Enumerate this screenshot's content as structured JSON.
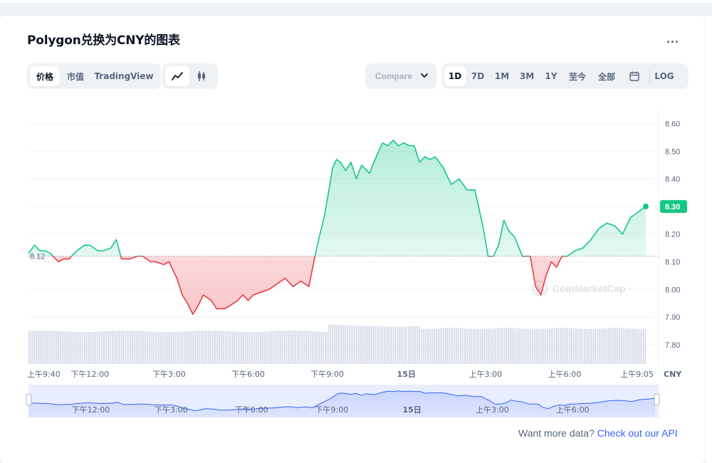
{
  "page": {
    "title": "Polygon兑换为CNY的图表",
    "more_label": "...",
    "attribution": {
      "text": "Want more data?",
      "link": "Check out our API"
    }
  },
  "toolbar": {
    "tabs": [
      "价格",
      "市值",
      "TradingView"
    ],
    "active_tab": "价格",
    "chart_styles": [
      {
        "icon": "line-chart-icon",
        "active": true
      },
      {
        "icon": "candlestick-icon",
        "active": false
      }
    ],
    "compare_label": "Compare",
    "ranges": [
      "1D",
      "7D",
      "1M",
      "3M",
      "1Y",
      "至今",
      "全部"
    ],
    "active_range": "1D",
    "calendar_icon": "calendar-icon",
    "log_label": "LOG"
  },
  "chart_data": {
    "type": "line",
    "currency": "CNY",
    "ylim": [
      7.73,
      8.64
    ],
    "yticks": [
      7.8,
      7.9,
      8.0,
      8.1,
      8.2,
      8.3,
      8.4,
      8.5,
      8.6
    ],
    "ytick_labels": [
      "7.80",
      "7.90",
      "8.00",
      "8.10",
      "8.20",
      "8.30",
      "8.40",
      "8.50",
      "8.60"
    ],
    "baseline": 8.12,
    "baseline_label": "8.12",
    "current_value": 8.3,
    "current_label": "8.30",
    "xlim": [
      9.67,
      33.08
    ],
    "xticks": [
      {
        "t": 9.67,
        "label": "上午9:40"
      },
      {
        "t": 12,
        "label": "下午12:00"
      },
      {
        "t": 15,
        "label": "下午3:00"
      },
      {
        "t": 18,
        "label": "下午6:00"
      },
      {
        "t": 21,
        "label": "下午9:00"
      },
      {
        "t": 24,
        "label": "15日"
      },
      {
        "t": 27,
        "label": "上午3:00"
      },
      {
        "t": 30,
        "label": "上午6:00"
      },
      {
        "t": 33.08,
        "label": "上午9:05"
      }
    ],
    "navigator_ticks": [
      {
        "t": 12,
        "label": "下午12:00"
      },
      {
        "t": 15,
        "label": "下午3:00"
      },
      {
        "t": 18,
        "label": "下午6:00"
      },
      {
        "t": 21,
        "label": "下午9:00"
      },
      {
        "t": 24,
        "label": "15日"
      },
      {
        "t": 27,
        "label": "上午3:00"
      },
      {
        "t": 30,
        "label": "上午6:00"
      }
    ],
    "watermark": "CoinMarketCap",
    "colors": {
      "up": "#16c784",
      "down": "#ea3943",
      "volume": "#cfd6e4",
      "navigator": "#3861fb"
    },
    "series": [
      {
        "x": [
          9.67,
          9.9,
          10.1,
          10.3,
          10.5,
          10.8,
          11.0,
          11.2,
          11.5,
          11.8,
          12.0,
          12.3,
          12.5,
          12.8,
          13.0,
          13.2,
          13.5,
          13.8,
          14.0,
          14.3,
          14.5,
          14.8,
          15.0,
          15.3,
          15.5,
          15.7,
          15.9,
          16.1,
          16.3,
          16.6,
          16.8,
          17.1,
          17.3,
          17.6,
          17.8,
          18.0,
          18.2,
          18.5,
          18.8,
          19.1,
          19.4,
          19.7,
          20.0,
          20.3,
          20.6,
          20.9,
          21.1,
          21.2,
          21.35,
          21.5,
          21.7,
          21.9,
          22.1,
          22.3,
          22.6,
          22.9,
          23.1,
          23.3,
          23.5,
          23.7,
          23.9,
          24.1,
          24.3,
          24.5,
          24.7,
          24.9,
          25.1,
          25.4,
          25.7,
          26.0,
          26.3,
          26.6,
          26.9,
          27.1,
          27.3,
          27.5,
          27.7,
          27.9,
          28.1,
          28.4,
          28.7,
          28.9,
          29.1,
          29.3,
          29.5,
          29.7,
          29.9,
          30.1,
          30.4,
          30.7,
          31.0,
          31.3,
          31.6,
          31.9,
          32.2,
          32.5,
          32.8,
          33.08
        ],
        "values": [
          8.13,
          8.16,
          8.14,
          8.14,
          8.13,
          8.1,
          8.11,
          8.11,
          8.14,
          8.16,
          8.16,
          8.14,
          8.14,
          8.15,
          8.18,
          8.11,
          8.11,
          8.12,
          8.12,
          8.1,
          8.1,
          8.09,
          8.1,
          8.04,
          7.98,
          7.95,
          7.91,
          7.94,
          7.98,
          7.96,
          7.93,
          7.93,
          7.94,
          7.96,
          7.98,
          7.96,
          7.98,
          7.99,
          8.0,
          8.02,
          8.04,
          8.01,
          8.03,
          8.01,
          8.15,
          8.27,
          8.38,
          8.44,
          8.47,
          8.46,
          8.43,
          8.46,
          8.4,
          8.45,
          8.42,
          8.49,
          8.53,
          8.52,
          8.54,
          8.52,
          8.53,
          8.52,
          8.52,
          8.46,
          8.48,
          8.47,
          8.48,
          8.44,
          8.38,
          8.4,
          8.36,
          8.36,
          8.23,
          8.12,
          8.12,
          8.16,
          8.25,
          8.21,
          8.19,
          8.12,
          8.12,
          8.01,
          7.98,
          8.05,
          8.1,
          8.08,
          8.12,
          8.12,
          8.14,
          8.15,
          8.18,
          8.22,
          8.24,
          8.23,
          8.2,
          8.26,
          8.28,
          8.3
        ]
      }
    ]
  }
}
